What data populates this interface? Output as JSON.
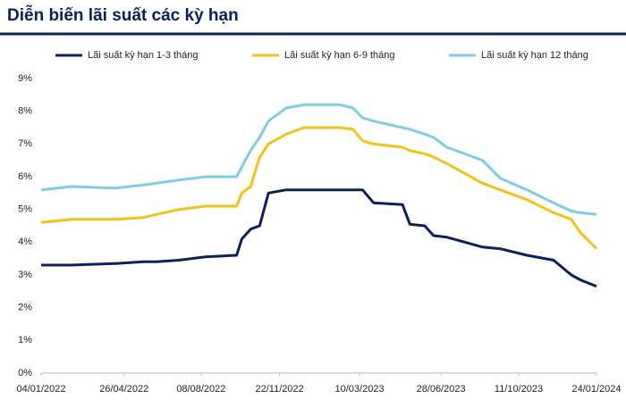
{
  "chart_data": {
    "type": "line",
    "title": "Diễn biến lãi suất các kỳ hạn",
    "x": [
      "04/01/2022",
      "14/02/2022",
      "15/04/2022",
      "22/05/2022",
      "09/06/2022",
      "09/07/2022",
      "14/08/2022",
      "25/09/2022",
      "02/10/2022",
      "14/10/2022",
      "26/10/2022",
      "07/11/2022",
      "01/12/2022",
      "25/12/2022",
      "11/02/2023",
      "01/03/2023",
      "14/03/2023",
      "29/03/2023",
      "07/05/2023",
      "17/05/2023",
      "06/06/2023",
      "18/06/2023",
      "06/07/2023",
      "23/08/2023",
      "16/09/2023",
      "22/10/2023",
      "27/11/2023",
      "21/12/2023",
      "02/01/2024",
      "24/01/2024"
    ],
    "series": [
      {
        "name": "Lãi suất kỳ hạn 1-3 tháng",
        "color": "#0d1f5c",
        "values": [
          3.3,
          3.3,
          3.35,
          3.4,
          3.4,
          3.45,
          3.55,
          3.6,
          4.1,
          4.4,
          4.5,
          5.5,
          5.6,
          5.6,
          5.6,
          5.6,
          5.6,
          5.2,
          5.15,
          4.55,
          4.5,
          4.2,
          4.15,
          3.85,
          3.8,
          3.6,
          3.45,
          3.0,
          2.85,
          2.65
        ]
      },
      {
        "name": "Lãi suất kỳ hạn 6-9 tháng",
        "color": "#f2c21b",
        "values": [
          4.6,
          4.7,
          4.7,
          4.75,
          4.85,
          5.0,
          5.1,
          5.1,
          5.5,
          5.7,
          6.6,
          7.0,
          7.3,
          7.5,
          7.5,
          7.45,
          7.1,
          7.0,
          6.9,
          6.8,
          6.7,
          6.6,
          6.4,
          5.8,
          5.6,
          5.3,
          4.9,
          4.7,
          4.3,
          3.8
        ]
      },
      {
        "name": "Lãi suất kỳ hạn 12 tháng",
        "color": "#7fcbe8",
        "values": [
          5.6,
          5.7,
          5.65,
          5.75,
          5.8,
          5.9,
          6.0,
          6.0,
          6.3,
          6.8,
          7.2,
          7.7,
          8.1,
          8.2,
          8.2,
          8.1,
          7.8,
          7.7,
          7.5,
          7.45,
          7.3,
          7.2,
          6.9,
          6.5,
          5.95,
          5.6,
          5.2,
          4.95,
          4.9,
          4.85
        ]
      }
    ],
    "xlim": [
      "04/01/2022",
      "24/01/2024"
    ],
    "xticks": [
      "04/01/2022",
      "26/04/2022",
      "08/08/2022",
      "22/11/2022",
      "10/03/2023",
      "28/06/2023",
      "11/10/2023",
      "24/01/2024"
    ],
    "ylim": [
      0,
      9
    ],
    "yticks": [
      {
        "value": 0,
        "label": "0%"
      },
      {
        "value": 1,
        "label": "1%"
      },
      {
        "value": 2,
        "label": "2%"
      },
      {
        "value": 3,
        "label": "3%"
      },
      {
        "value": 4,
        "label": "4%"
      },
      {
        "value": 5,
        "label": "5%"
      },
      {
        "value": 6,
        "label": "6%"
      },
      {
        "value": 7,
        "label": "7%"
      },
      {
        "value": 8,
        "label": "8%"
      },
      {
        "value": 9,
        "label": "9%"
      }
    ],
    "grid": false
  }
}
